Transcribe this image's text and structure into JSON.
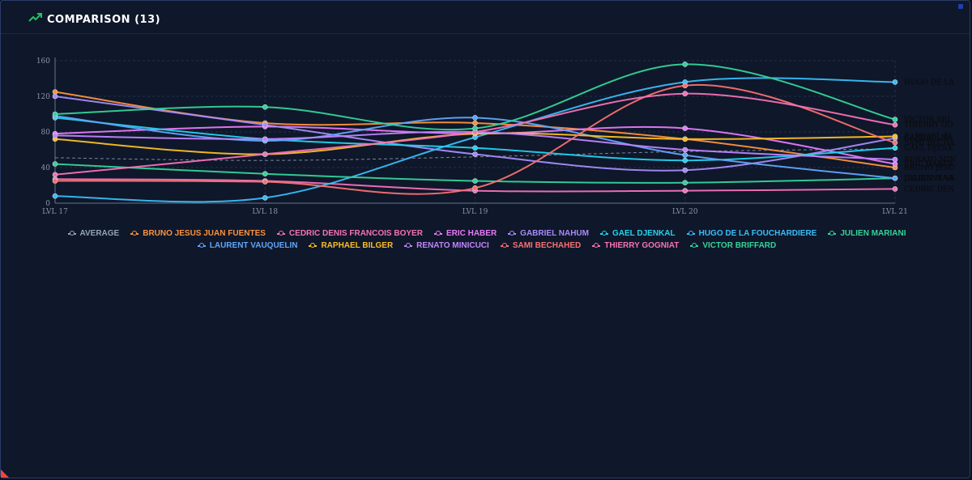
{
  "panel": {
    "title": "COMPARISON (13)",
    "icon": "trending-up-icon"
  },
  "chart_data": {
    "type": "line",
    "title": "COMPARISON (13)",
    "categories": [
      "LVL 17",
      "LVL 18",
      "LVL 19",
      "LVL 20",
      "LVL 21"
    ],
    "ylim": [
      0,
      160
    ],
    "yticks": [
      0,
      40,
      80,
      120,
      160
    ],
    "grid": true,
    "legend_position": "bottom",
    "series": [
      {
        "name": "AVERAGE",
        "color": "#94a3b8",
        "dashed": true,
        "values": [
          51,
          48,
          52,
          58,
          61
        ],
        "end_label": ""
      },
      {
        "name": "BRUNO JESUS JUAN FUENTES",
        "color": "#fb923c",
        "values": [
          125,
          90,
          90,
          72,
          40
        ],
        "end_label": "BRUNO JESU"
      },
      {
        "name": "CEDRIC DENIS FRANCOIS BOYER",
        "color": "#f472b6",
        "values": [
          27,
          25,
          14,
          14,
          16
        ],
        "end_label": "CEDRIC DEN"
      },
      {
        "name": "ERIC HABER",
        "color": "#e879f9",
        "values": [
          78,
          86,
          78,
          84,
          44
        ],
        "end_label": "ERIC HABER"
      },
      {
        "name": "GABRIEL NAHUM",
        "color": "#a78bfa",
        "values": [
          120,
          88,
          55,
          37,
          73
        ],
        "end_label": "GABRIEL NA"
      },
      {
        "name": "GAEL DJENKAL",
        "color": "#22d3ee",
        "values": [
          96,
          72,
          62,
          48,
          62
        ],
        "end_label": "GAEL DJENK"
      },
      {
        "name": "HUGO DE LA FOUCHARDIERE",
        "color": "#38bdf8",
        "values": [
          8,
          6,
          74,
          136,
          136
        ],
        "end_label": "HUGO DE LA"
      },
      {
        "name": "JULIEN MARIANI",
        "color": "#34d399",
        "values": [
          44,
          33,
          25,
          23,
          28
        ],
        "end_label": "JULIEN MAR"
      },
      {
        "name": "LAURENT VAUQUELIN",
        "color": "#60a5fa",
        "values": [
          98,
          70,
          96,
          54,
          28
        ],
        "end_label": "LAURENT VA"
      },
      {
        "name": "RAPHAEL BILGER",
        "color": "#fbbf24",
        "values": [
          72,
          55,
          78,
          72,
          75
        ],
        "end_label": "RAPHAEL BI"
      },
      {
        "name": "RENATO MINICUCI",
        "color": "#c084fc",
        "values": [
          76,
          72,
          80,
          60,
          49
        ],
        "end_label": "RENATO MIN"
      },
      {
        "name": "SAMI BECHAHED",
        "color": "#f87171",
        "values": [
          25,
          24,
          17,
          132,
          68
        ],
        "end_label": "SAMI BECHA"
      },
      {
        "name": "THIERRY GOGNIAT",
        "color": "#f472b6",
        "values": [
          32,
          55,
          80,
          123,
          88
        ],
        "end_label": "THIERRY GO"
      },
      {
        "name": "VICTOR BRIFFARD",
        "color": "#34d399",
        "values": [
          100,
          108,
          84,
          156,
          94
        ],
        "end_label": "VICTOR BRI"
      }
    ]
  }
}
